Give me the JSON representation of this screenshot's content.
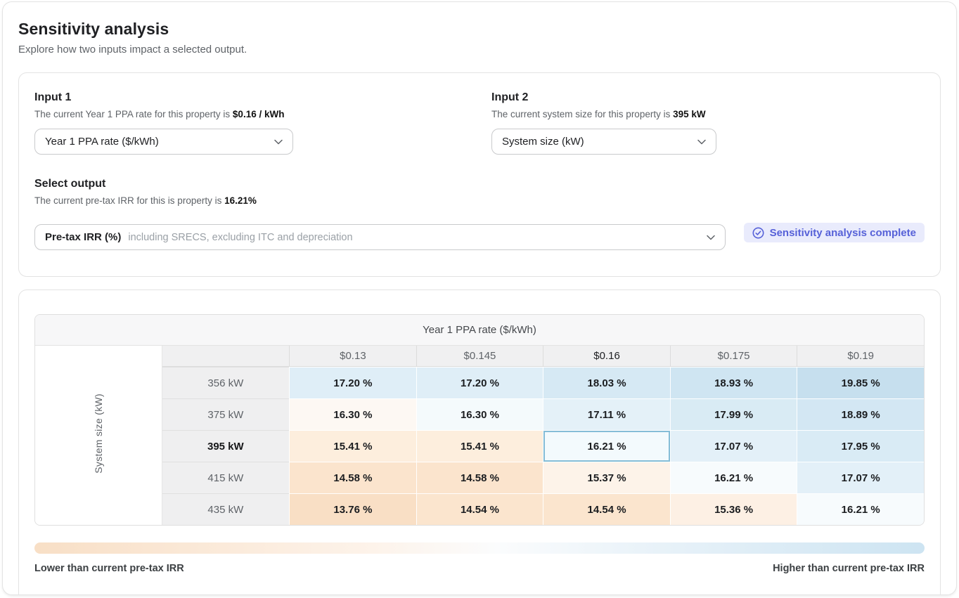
{
  "page": {
    "title": "Sensitivity analysis",
    "subtitle": "Explore how two inputs impact a selected output."
  },
  "inputs": {
    "input1": {
      "label": "Input 1",
      "description_prefix": "The current Year 1 PPA rate for this property is",
      "description_value": "$0.16 / kWh",
      "selected": "Year 1 PPA rate ($/kWh)"
    },
    "input2": {
      "label": "Input 2",
      "description_prefix": "The current system size for this property is",
      "description_value": "395 kW",
      "selected": "System size (kW)"
    },
    "output": {
      "label": "Select output",
      "description_prefix": "The current pre-tax IRR for this is property is",
      "description_value": "16.21%",
      "selected": "Pre-tax IRR (%)",
      "selected_hint": "including SRECS, excluding ITC and depreciation"
    },
    "status_badge": {
      "label": "Sensitivity analysis complete",
      "icon": "check-circle-icon",
      "text_color": "#5661d8",
      "bg_color": "#e9ebfc"
    }
  },
  "chart_data": {
    "type": "heatmap",
    "title": "Year 1 PPA rate ($/kWh)",
    "x_axis_label": "Year 1 PPA rate ($/kWh)",
    "y_axis_label": "System size (kW)",
    "columns": [
      "$0.13",
      "$0.145",
      "$0.16",
      "$0.175",
      "$0.19"
    ],
    "rows": [
      "356 kW",
      "375 kW",
      "395 kW",
      "415 kW",
      "435 kW"
    ],
    "current_column": "$0.16",
    "current_row": "395 kW",
    "current_output_value": 16.21,
    "value_suffix": " %",
    "values": [
      [
        17.2,
        17.2,
        18.03,
        18.93,
        19.85
      ],
      [
        16.3,
        16.3,
        17.11,
        17.99,
        18.89
      ],
      [
        15.41,
        15.41,
        16.21,
        17.07,
        17.95
      ],
      [
        14.58,
        14.58,
        15.37,
        16.21,
        17.07
      ],
      [
        13.76,
        14.54,
        14.54,
        15.36,
        16.21
      ]
    ],
    "cell_colors": [
      [
        "#dfeef7",
        "#dfeef7",
        "#d6e9f4",
        "#cfe5f2",
        "#c6dfee"
      ],
      [
        "#fdf8f3",
        "#f4fafc",
        "#e4f1f8",
        "#d9ebf4",
        "#d3e7f3"
      ],
      [
        "#fdeedd",
        "#fdeedd",
        "#f3fafd",
        "#e3f0f8",
        "#d9ebf5"
      ],
      [
        "#fbe4cd",
        "#fbe4cd",
        "#fdf3e9",
        "#f7fbfd",
        "#e3f0f8"
      ],
      [
        "#f9dfc5",
        "#fbe5ce",
        "#fbe5ce",
        "#fdf0e4",
        "#f7fbfd"
      ]
    ],
    "highlight_cell": {
      "row": 2,
      "col": 2,
      "border_color": "#85bdd7"
    },
    "legend": {
      "low_label": "Lower than current pre-tax IRR",
      "high_label": "Higher than current pre-tax IRR",
      "low_color": "#f8dfc6",
      "high_color": "#cde4f2"
    }
  }
}
